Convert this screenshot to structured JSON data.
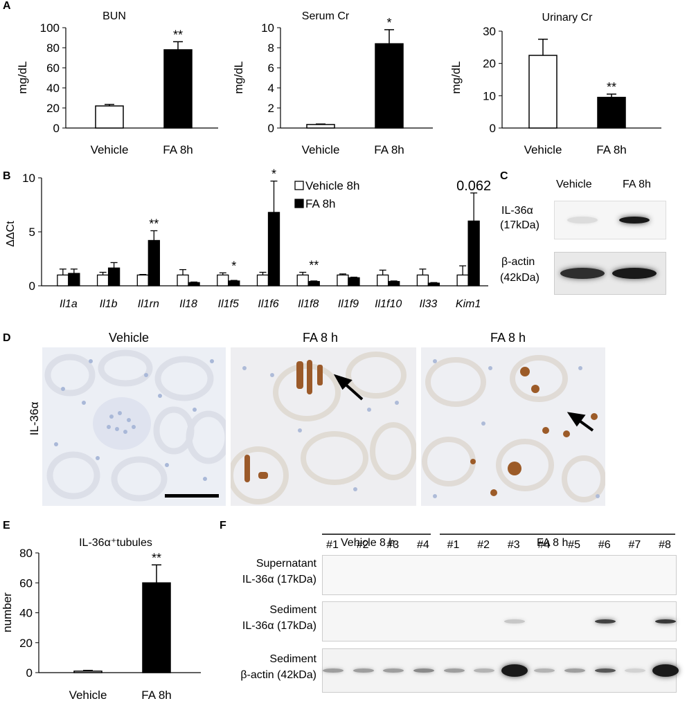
{
  "panels": {
    "A": "A",
    "B": "B",
    "C": "C",
    "D": "D",
    "E": "E",
    "F": "F"
  },
  "chart_data": [
    {
      "id": "bun",
      "type": "bar",
      "title": "BUN",
      "ylabel": "mg/dL",
      "categories": [
        "Vehicle",
        "FA 8h"
      ],
      "values": [
        22,
        78
      ],
      "errors": [
        1.5,
        8
      ],
      "fills": [
        "#ffffff",
        "#000000"
      ],
      "significance": [
        "",
        "**"
      ],
      "ylim": [
        0,
        100
      ],
      "yticks": [
        "0",
        "20",
        "40",
        "60",
        "80",
        "100"
      ]
    },
    {
      "id": "serum_cr",
      "type": "bar",
      "title": "Serum Cr",
      "ylabel": "mg/dL",
      "categories": [
        "Vehicle",
        "FA 8h"
      ],
      "values": [
        0.35,
        8.4
      ],
      "errors": [
        0.05,
        1.4
      ],
      "fills": [
        "#ffffff",
        "#000000"
      ],
      "significance": [
        "",
        "*"
      ],
      "ylim": [
        0,
        10
      ],
      "yticks": [
        "0",
        "2",
        "4",
        "6",
        "8",
        "10"
      ]
    },
    {
      "id": "urinary_cr",
      "type": "bar",
      "title": "Urinary Cr",
      "ylabel": "mg/dL",
      "categories": [
        "Vehicle",
        "FA 8h"
      ],
      "values": [
        22.5,
        9.5
      ],
      "errors": [
        5.0,
        1.0
      ],
      "fills": [
        "#ffffff",
        "#000000"
      ],
      "significance": [
        "",
        "**"
      ],
      "ylim": [
        0,
        30
      ],
      "yticks": [
        "0",
        "10",
        "20",
        "30"
      ]
    },
    {
      "id": "ddct",
      "type": "bar",
      "ylabel": "ΔΔCt",
      "categories": [
        "Il1a",
        "Il1b",
        "Il1rn",
        "Il18",
        "Il1f5",
        "Il1f6",
        "Il1f8",
        "Il1f9",
        "Il1f10",
        "Il33",
        "Kim1"
      ],
      "series": [
        {
          "name": "Vehicle 8h",
          "fill": "#ffffff",
          "values": [
            1.0,
            1.0,
            1.0,
            1.0,
            1.0,
            1.0,
            1.0,
            1.0,
            1.0,
            1.0,
            1.0
          ],
          "errors": [
            0.55,
            0.25,
            0.05,
            0.5,
            0.2,
            0.25,
            0.25,
            0.1,
            0.45,
            0.55,
            0.85
          ]
        },
        {
          "name": "FA 8h",
          "fill": "#000000",
          "values": [
            1.15,
            1.65,
            4.2,
            0.3,
            0.45,
            6.8,
            0.4,
            0.75,
            0.4,
            0.25,
            6.0
          ],
          "errors": [
            0.4,
            0.5,
            0.9,
            0.05,
            0.05,
            2.9,
            0.05,
            0.05,
            0.05,
            0.05,
            2.6
          ]
        }
      ],
      "significance": [
        "",
        "",
        "**",
        "",
        "*",
        "*",
        "**",
        "",
        "",
        "",
        "0.062"
      ],
      "ylim": [
        0,
        10
      ],
      "yticks": [
        "0",
        "5",
        "10"
      ],
      "legend": "top-right"
    },
    {
      "id": "il36_tubules",
      "type": "bar",
      "title": "IL-36α⁺tubules",
      "ylabel": "number",
      "categories": [
        "Vehicle",
        "FA 8h"
      ],
      "values": [
        1.0,
        60
      ],
      "errors": [
        0.5,
        12
      ],
      "fills": [
        "#ffffff",
        "#000000"
      ],
      "significance": [
        "",
        "**"
      ],
      "ylim": [
        0,
        80
      ],
      "yticks": [
        "0",
        "20",
        "40",
        "60",
        "80"
      ]
    }
  ],
  "blotC": {
    "headers": [
      "Vehicle",
      "FA 8h"
    ],
    "rows": [
      {
        "line1": "IL-36α",
        "line2": "(17kDa)",
        "bands": [
          0.05,
          1.0
        ]
      },
      {
        "line1": "β-actin",
        "line2": "(42kDa)",
        "bands": [
          0.9,
          1.0
        ]
      }
    ]
  },
  "histology": {
    "headers": [
      "Vehicle",
      "FA 8 h",
      "FA 8 h"
    ],
    "row_label": "IL-36α"
  },
  "blotF": {
    "group1": "Vehicle 8 h",
    "group2": "FA 8 h",
    "lanes": [
      "#1",
      "#2",
      "#3",
      "#4",
      "#1",
      "#2",
      "#3",
      "#4",
      "#5",
      "#6",
      "#7",
      "#8"
    ],
    "rows": [
      {
        "line1": "Supernatant",
        "line2": "IL-36α (17kDa)",
        "bands": [
          0,
          0,
          0,
          0,
          0,
          0,
          0,
          0,
          0,
          0,
          0,
          0
        ]
      },
      {
        "line1": "Sediment",
        "line2": "IL-36α (17kDa)",
        "bands": [
          0,
          0,
          0,
          0,
          0,
          0,
          0.15,
          0,
          0,
          0.8,
          0,
          0.85
        ]
      },
      {
        "line1": "Sediment",
        "line2": "β-actin (42kDa)",
        "bands": [
          0.35,
          0.35,
          0.35,
          0.45,
          0.35,
          0.25,
          1.0,
          0.25,
          0.35,
          0.7,
          0.1,
          1.0
        ]
      }
    ]
  }
}
